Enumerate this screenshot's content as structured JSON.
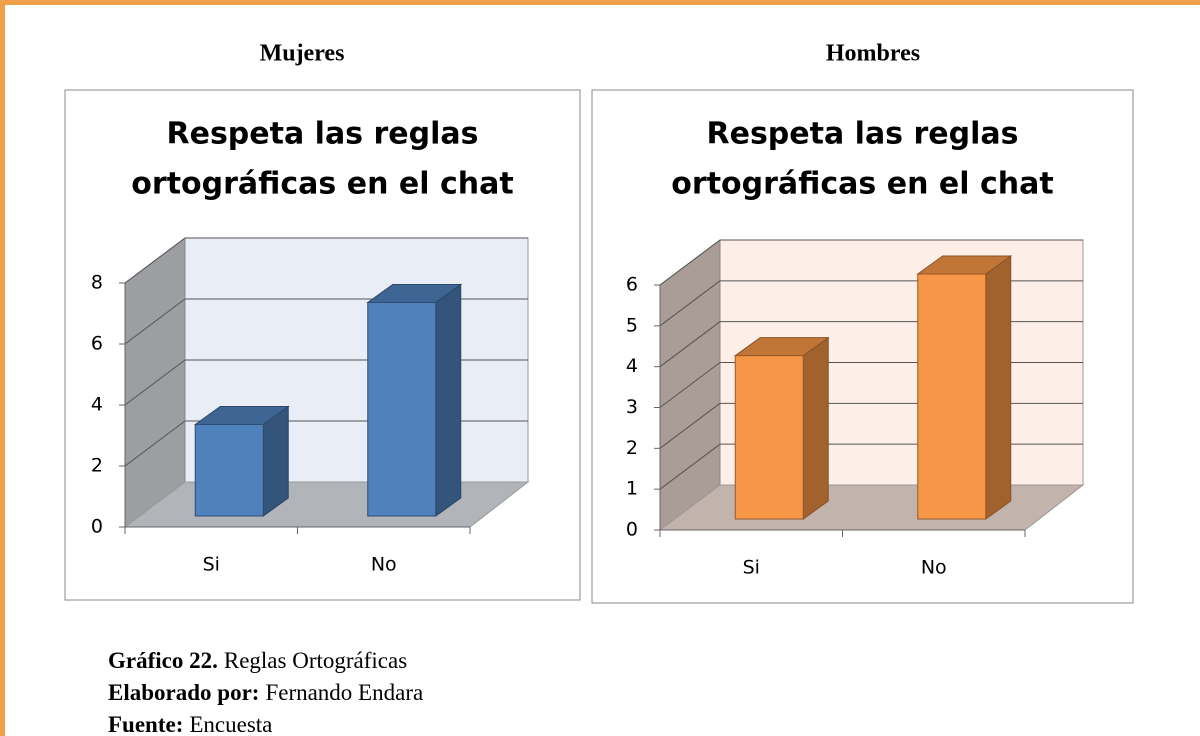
{
  "chart_data": [
    {
      "type": "bar3d",
      "heading": "Mujeres",
      "title": [
        "Respeta las reglas",
        "ortográficas en el chat"
      ],
      "categories": [
        "Si",
        "No"
      ],
      "values": [
        3,
        7
      ],
      "color": "#4f81bd",
      "back_wall_color": "#e9edf6",
      "ylim": [
        0,
        8
      ],
      "yticks": [
        0,
        2,
        4,
        6,
        8
      ],
      "grid": true
    },
    {
      "type": "bar3d",
      "heading": "Hombres",
      "title": [
        "Respeta las reglas",
        "ortográficas en el chat"
      ],
      "categories": [
        "Si",
        "No"
      ],
      "values": [
        4,
        6
      ],
      "color": "#f79646",
      "back_wall_color": "#fdefe7",
      "ylim": [
        0,
        6
      ],
      "yticks": [
        0,
        1,
        2,
        3,
        4,
        5,
        6
      ],
      "grid": true
    }
  ],
  "caption": [
    {
      "label": "Gráfico 22.",
      "text": "Reglas Ortográficas"
    },
    {
      "label": "Elaborado por:",
      "text": "Fernando Endara"
    },
    {
      "label": "Fuente:",
      "text": "Encuesta"
    }
  ]
}
